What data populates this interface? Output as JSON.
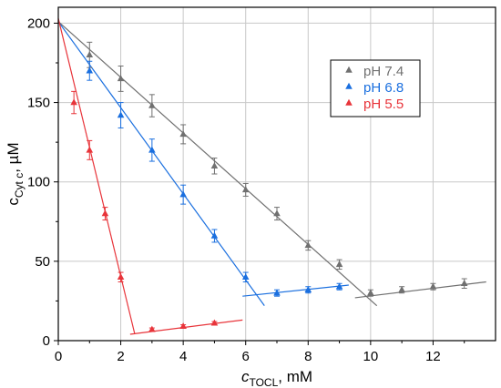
{
  "chart_data": {
    "type": "scatter",
    "title": "",
    "xlabel": {
      "main": "c",
      "sub": "TOCL",
      "unit": ", mM"
    },
    "ylabel": {
      "main": "c",
      "sub": "Cyt c",
      "unit": ", µM"
    },
    "xlim": [
      0,
      14
    ],
    "ylim": [
      0,
      210
    ],
    "xticks": [
      0,
      2,
      4,
      6,
      8,
      10,
      12
    ],
    "yticks": [
      0,
      50,
      100,
      150,
      200
    ],
    "grid": true,
    "legend_position": "top-right",
    "series": [
      {
        "name": "pH 7.4",
        "color": "#707070",
        "marker": "triangle",
        "points": [
          {
            "x": 1,
            "y": 180,
            "err": 8
          },
          {
            "x": 2,
            "y": 165,
            "err": 8
          },
          {
            "x": 3,
            "y": 148,
            "err": 7
          },
          {
            "x": 4,
            "y": 130,
            "err": 6
          },
          {
            "x": 5,
            "y": 110,
            "err": 5
          },
          {
            "x": 6,
            "y": 95,
            "err": 4
          },
          {
            "x": 7,
            "y": 80,
            "err": 4
          },
          {
            "x": 8,
            "y": 60,
            "err": 3
          },
          {
            "x": 9,
            "y": 48,
            "err": 3
          },
          {
            "x": 10,
            "y": 30,
            "err": 2
          },
          {
            "x": 11,
            "y": 32,
            "err": 2
          },
          {
            "x": 12,
            "y": 34,
            "err": 2
          },
          {
            "x": 13,
            "y": 36,
            "err": 3
          }
        ],
        "fit_lines": [
          {
            "x1": 0,
            "y1": 201,
            "x2": 10.2,
            "y2": 22
          },
          {
            "x1": 9.5,
            "y1": 27,
            "x2": 13.7,
            "y2": 37
          }
        ]
      },
      {
        "name": "pH 6.8",
        "color": "#1a6fdf",
        "marker": "triangle",
        "points": [
          {
            "x": 1,
            "y": 170,
            "err": 6
          },
          {
            "x": 2,
            "y": 142,
            "err": 8
          },
          {
            "x": 3,
            "y": 120,
            "err": 7
          },
          {
            "x": 4,
            "y": 92,
            "err": 6
          },
          {
            "x": 5,
            "y": 66,
            "err": 4
          },
          {
            "x": 6,
            "y": 40,
            "err": 3
          },
          {
            "x": 7,
            "y": 30,
            "err": 2
          },
          {
            "x": 8,
            "y": 32,
            "err": 2
          },
          {
            "x": 9,
            "y": 34,
            "err": 2
          }
        ],
        "fit_lines": [
          {
            "x1": 0,
            "y1": 201,
            "x2": 6.6,
            "y2": 22
          },
          {
            "x1": 5.9,
            "y1": 28,
            "x2": 9.3,
            "y2": 35
          }
        ]
      },
      {
        "name": "pH 5.5",
        "color": "#e8343a",
        "marker": "triangle",
        "points": [
          {
            "x": 0.5,
            "y": 150,
            "err": 7
          },
          {
            "x": 1,
            "y": 120,
            "err": 6
          },
          {
            "x": 1.5,
            "y": 80,
            "err": 4
          },
          {
            "x": 2,
            "y": 40,
            "err": 3
          },
          {
            "x": 3,
            "y": 7,
            "err": 1
          },
          {
            "x": 4,
            "y": 9,
            "err": 1
          },
          {
            "x": 5,
            "y": 11,
            "err": 1
          }
        ],
        "fit_lines": [
          {
            "x1": 0,
            "y1": 203,
            "x2": 2.45,
            "y2": 4
          },
          {
            "x1": 2.3,
            "y1": 4,
            "x2": 5.9,
            "y2": 13
          }
        ]
      }
    ]
  }
}
